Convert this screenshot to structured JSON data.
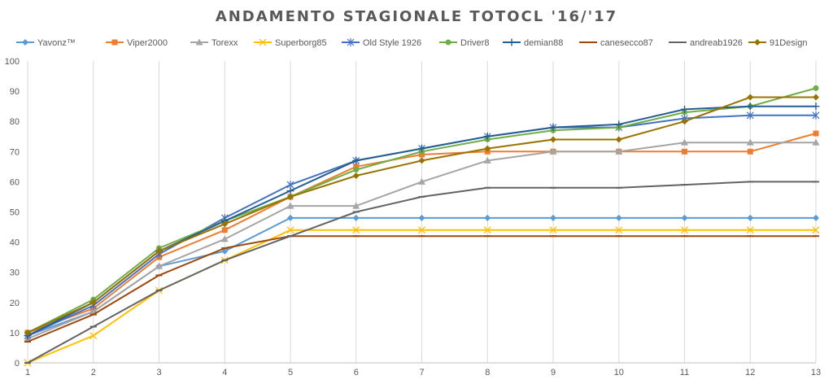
{
  "chart_data": {
    "type": "line",
    "title": "ANDAMENTO STAGIONALE TOTOCL '16/'17",
    "xlabel": "",
    "ylabel": "",
    "x": [
      1,
      2,
      3,
      4,
      5,
      6,
      7,
      8,
      9,
      10,
      11,
      12,
      13
    ],
    "ylim": [
      0,
      100
    ],
    "yticks": [
      0,
      10,
      20,
      30,
      40,
      50,
      60,
      70,
      80,
      90,
      100
    ],
    "grid": "vertical",
    "legend": "top",
    "series": [
      {
        "name": "Yavonz™",
        "color": "#5B9BD5",
        "marker": "diamond",
        "values": [
          9,
          17,
          32,
          37,
          48,
          48,
          48,
          48,
          48,
          48,
          48,
          48,
          48
        ]
      },
      {
        "name": "Viper2000",
        "color": "#ED7D31",
        "marker": "square",
        "values": [
          10,
          18,
          35,
          44,
          55,
          65,
          69,
          70,
          70,
          70,
          70,
          70,
          76
        ]
      },
      {
        "name": "Torexx",
        "color": "#A5A5A5",
        "marker": "triangle",
        "values": [
          8,
          17,
          32,
          41,
          52,
          52,
          60,
          67,
          70,
          70,
          73,
          73,
          73
        ]
      },
      {
        "name": "Superborg85",
        "color": "#FFC000",
        "marker": "x",
        "values": [
          0,
          9,
          24,
          34,
          44,
          44,
          44,
          44,
          44,
          44,
          44,
          44,
          44
        ]
      },
      {
        "name": "Old Style 1926",
        "color": "#4472C4",
        "marker": "star",
        "values": [
          9,
          19,
          36,
          48,
          59,
          67,
          71,
          75,
          78,
          78,
          81,
          82,
          82
        ]
      },
      {
        "name": "Driver8",
        "color": "#70AD47",
        "marker": "circle",
        "values": [
          10,
          21,
          38,
          47,
          55,
          64,
          70,
          74,
          77,
          78,
          83,
          85,
          91
        ]
      },
      {
        "name": "demian88",
        "color": "#255E91",
        "marker": "plus",
        "values": [
          9,
          20,
          37,
          47,
          57,
          67,
          71,
          75,
          78,
          79,
          84,
          85,
          85
        ]
      },
      {
        "name": "canesecco87",
        "color": "#9E480E",
        "marker": "dash",
        "values": [
          7,
          16,
          29,
          38,
          42,
          42,
          42,
          42,
          42,
          42,
          42,
          42,
          42
        ]
      },
      {
        "name": "andreab1926",
        "color": "#636363",
        "marker": "dash",
        "values": [
          0,
          12,
          24,
          34,
          42,
          50,
          55,
          58,
          58,
          58,
          59,
          60,
          60
        ]
      },
      {
        "name": "91Design",
        "color": "#997300",
        "marker": "diamond",
        "values": [
          10,
          20,
          37,
          46,
          55,
          62,
          67,
          71,
          74,
          74,
          80,
          88,
          88
        ]
      }
    ]
  }
}
